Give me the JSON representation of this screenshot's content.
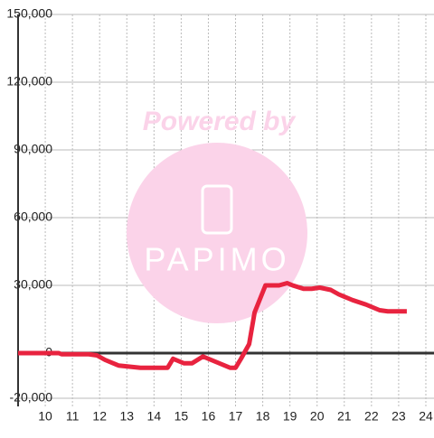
{
  "chart_data": {
    "type": "line",
    "x": [
      9.0,
      10.5,
      10.6,
      11.6,
      11.9,
      12.2,
      12.7,
      13.5,
      14.5,
      14.7,
      15.1,
      15.4,
      15.8,
      16.3,
      16.8,
      17.0,
      17.2,
      17.5,
      17.7,
      18.1,
      18.6,
      18.9,
      19.1,
      19.5,
      19.8,
      20.1,
      20.5,
      20.8,
      21.3,
      21.8,
      22.0,
      22.3,
      22.6,
      23.3
    ],
    "series": [
      {
        "color": "#e8233f",
        "values": [
          0,
          0,
          -500,
          -500,
          -1000,
          -3000,
          -5500,
          -6500,
          -6500,
          -2500,
          -4500,
          -4500,
          -1500,
          -4000,
          -6500,
          -6500,
          -2500,
          4000,
          18000,
          30000,
          30000,
          31000,
          30000,
          28500,
          28500,
          29000,
          28000,
          26000,
          23500,
          21500,
          20500,
          19000,
          18500,
          18500
        ]
      }
    ],
    "xlim": [
      9.0,
      24.3
    ],
    "xticks": [
      10,
      11,
      12,
      13,
      14,
      15,
      16,
      17,
      18,
      19,
      20,
      21,
      22,
      23,
      24
    ],
    "ylim": [
      -20000,
      150000
    ],
    "yticks": [
      {
        "value": -20000,
        "label": "-20,000"
      },
      0,
      {
        "value": 30000,
        "label": "30,000"
      },
      {
        "value": 60000,
        "label": "60,000"
      },
      {
        "value": 90000,
        "label": "90,000"
      },
      {
        "value": 120000,
        "label": "120,000"
      },
      {
        "value": 150000,
        "label": "150,000"
      }
    ],
    "grid": true
  },
  "watermark": {
    "line1": "Powered by",
    "line2": "PAPIMO"
  }
}
